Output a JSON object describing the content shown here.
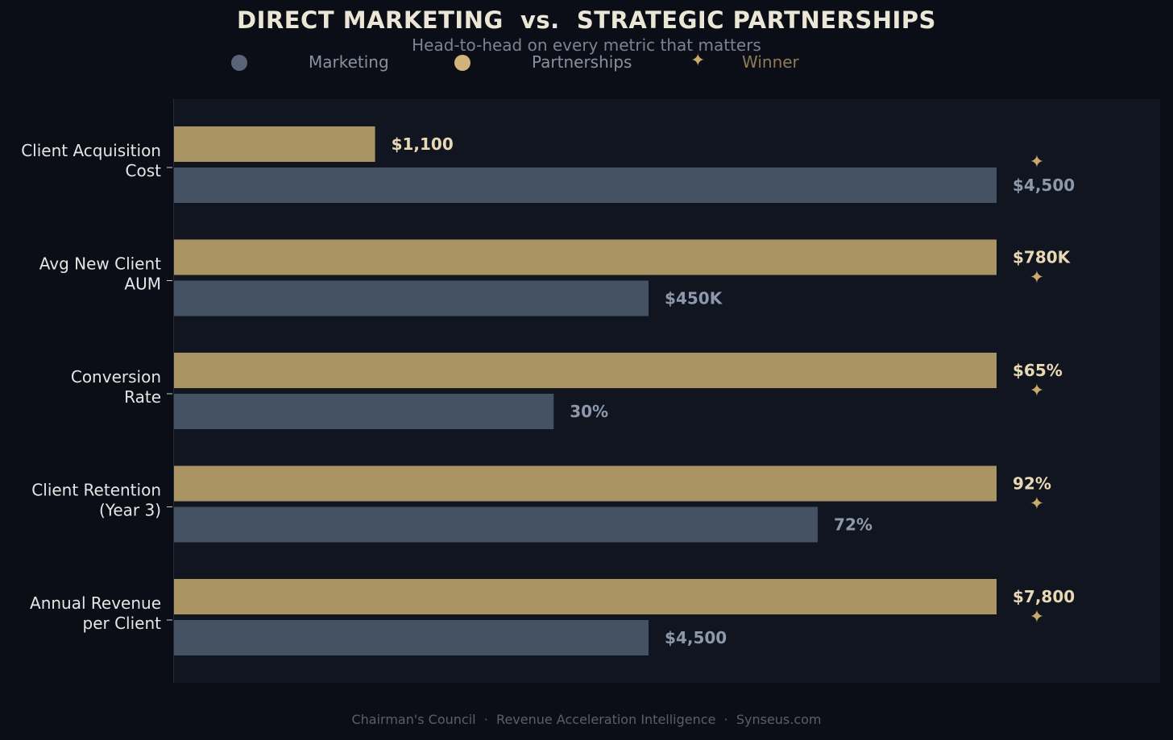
{
  "chart_data": {
    "type": "bar",
    "orientation": "horizontal",
    "title": "DIRECT MARKETING  vs.  STRATEGIC PARTNERSHIPS",
    "subtitle": "Head-to-head on every metric that matters",
    "categories": [
      [
        "Client Acquisition",
        "Cost"
      ],
      [
        "Avg New Client",
        "AUM"
      ],
      [
        "Conversion",
        "Rate"
      ],
      [
        "Client Retention",
        "(Year 3)"
      ],
      [
        "Annual Revenue",
        "per Client"
      ]
    ],
    "series": [
      {
        "name": "Partnerships",
        "color": "#ab9463",
        "label_color": "#e8d9b4",
        "values": [
          1100,
          780,
          65,
          92,
          7800
        ],
        "value_labels": [
          "$1,100",
          "$780K",
          "$65%",
          "92%",
          "$7,800"
        ]
      },
      {
        "name": "Marketing",
        "color": "#455263",
        "label_color": "#8d99ab",
        "values": [
          4500,
          450,
          30,
          72,
          4500
        ],
        "value_labels": [
          "$4,500",
          "$450K",
          "30%",
          "72%",
          "$4,500"
        ]
      }
    ],
    "normalization": "per-category relative to category maximum",
    "winner_marker": "✦",
    "winner": [
      "Partnerships",
      "Partnerships",
      "Partnerships",
      "Partnerships",
      "Partnerships"
    ],
    "grid": false
  },
  "legend": {
    "marketing": {
      "label": "Marketing",
      "color": "#5a6478"
    },
    "partnerships": {
      "label": "Partnerships",
      "color": "#d1b27a"
    },
    "winner": {
      "label": "Winner",
      "icon": "✦",
      "color": "#8f7b56"
    }
  },
  "footer": "Chairman's Council  ·  Revenue Acceleration Intelligence  ·  Synseus.com",
  "colors": {
    "background": "#0b0e16",
    "plot_background": "#111520",
    "accent_gold": "#c9a96c"
  }
}
